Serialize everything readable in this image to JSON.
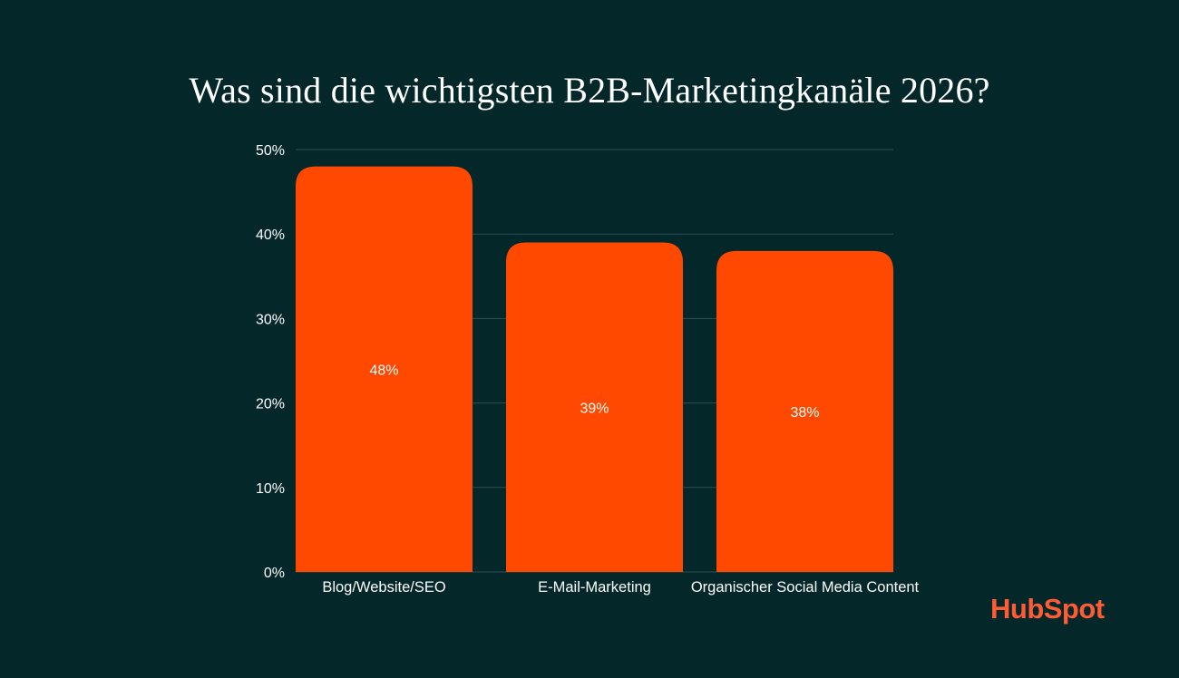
{
  "title": "Was sind die wichtigsten B2B-Marketingkanäle 2026?",
  "logo_text": "HubSpot",
  "colors": {
    "background": "#04272a",
    "bar": "#ff4800",
    "grid": "#2d4f52",
    "text": "#ffffff",
    "brand": "#ff5c35"
  },
  "chart_data": {
    "type": "bar",
    "title": "Was sind die wichtigsten B2B-Marketingkanäle 2026?",
    "categories": [
      "Blog/Website/SEO",
      "E-Mail-Marketing",
      "Organischer Social Media Content"
    ],
    "values": [
      48,
      39,
      38
    ],
    "value_labels": [
      "48%",
      "39%",
      "38%"
    ],
    "yticks": [
      0,
      10,
      20,
      30,
      40,
      50
    ],
    "ytick_labels": [
      "0%",
      "10%",
      "20%",
      "30%",
      "40%",
      "50%"
    ],
    "ylim": [
      0,
      50
    ],
    "xlabel": "",
    "ylabel": "",
    "grid": true,
    "legend": "none"
  }
}
